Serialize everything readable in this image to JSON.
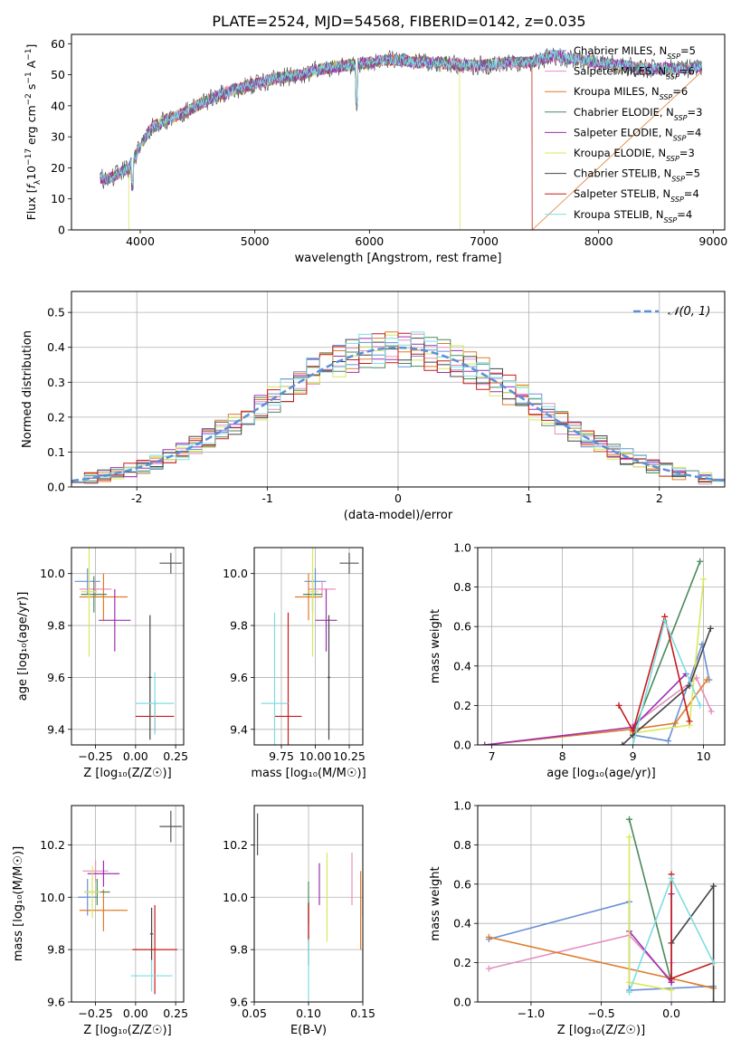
{
  "figure_title": "PLATE=2524, MJD=54568, FIBERID=0142, z=0.035",
  "colors": {
    "Chabrier MILES": "#6b8fd6",
    "Salpeter MILES": "#e58fc0",
    "Kroupa MILES": "#e07b2a",
    "Chabrier ELODIE": "#4a8a5a",
    "Salpeter ELODIE": "#9b30b0",
    "Kroupa ELODIE": "#d8e85a",
    "Chabrier STELIB": "#444444",
    "Salpeter STELIB": "#c81a1a",
    "Kroupa STELIB": "#7fdde0"
  },
  "chart_data": [
    {
      "id": "spectrum",
      "type": "line",
      "xlabel": "wavelength [Angstrom, rest frame]",
      "ylabel_parts": [
        "Flux [",
        "f",
        "λ",
        "10",
        "−17",
        " erg cm",
        "−2",
        " s",
        "−1",
        " A",
        "−1",
        "]"
      ],
      "xlim": [
        3400,
        9100
      ],
      "ylim": [
        0,
        63
      ],
      "xticks": [
        4000,
        5000,
        6000,
        7000,
        8000,
        9000
      ],
      "yticks": [
        0,
        10,
        20,
        30,
        40,
        50,
        60
      ],
      "continuum": {
        "x": [
          3650,
          3700,
          3800,
          3900,
          4000,
          4100,
          4200,
          4400,
          4600,
          4800,
          5000,
          5200,
          5400,
          5600,
          5800,
          6000,
          6200,
          6400,
          6600,
          6800,
          7000,
          7200,
          7400,
          7600,
          7800,
          8000,
          8200,
          8400,
          8600,
          8800,
          8900
        ],
        "y": [
          17,
          16,
          18,
          20,
          27,
          33,
          35,
          38,
          42,
          45,
          47,
          49,
          50,
          52,
          53,
          54,
          55,
          54,
          54,
          53,
          53,
          54,
          54,
          56,
          55,
          54,
          53,
          52,
          52,
          52,
          53
        ]
      },
      "legend": [
        {
          "name": "Chabrier MILES",
          "nssp": "5"
        },
        {
          "name": "Salpeter MILES",
          "nssp": "6"
        },
        {
          "name": "Kroupa MILES",
          "nssp": "6"
        },
        {
          "name": "Chabrier ELODIE",
          "nssp": "3"
        },
        {
          "name": "Salpeter ELODIE",
          "nssp": "4"
        },
        {
          "name": "Kroupa ELODIE",
          "nssp": "3"
        },
        {
          "name": "Chabrier STELIB",
          "nssp": "5"
        },
        {
          "name": "Salpeter STELIB",
          "nssp": "4"
        },
        {
          "name": "Kroupa STELIB",
          "nssp": "4"
        }
      ],
      "series_ends": {
        "Kroupa ELODIE": [
          3900,
          6790
        ],
        "Salpeter STELIB": [
          3650,
          7420
        ],
        "Kroupa STELIB": [
          3650,
          8900
        ],
        "Chabrier STELIB": [
          3650,
          8900
        ]
      }
    },
    {
      "id": "residuals",
      "type": "histogram",
      "xlabel": "(data-model)/error",
      "ylabel": "Normed distribution",
      "xlim": [
        -2.5,
        2.5
      ],
      "ylim": [
        0,
        0.56
      ],
      "xticks": [
        -2,
        -1,
        0,
        1,
        2
      ],
      "yticks": [
        0.0,
        0.1,
        0.2,
        0.3,
        0.4,
        0.5
      ],
      "bin_width": 0.1,
      "legend_label": "𝒩(0, 1)"
    },
    {
      "id": "age_vs_Z",
      "type": "scatter",
      "xlabel": "Z [log₁₀(Z/Z☉)]",
      "ylabel": "age  [log₁₀(age/yr)]",
      "xlim": [
        -0.4,
        0.3
      ],
      "ylim": [
        9.34,
        10.1
      ],
      "xticks": [
        -0.25,
        0.0,
        0.25
      ],
      "xtick_labels": [
        "−0.25",
        "0.00",
        "0.25"
      ],
      "yticks": [
        9.4,
        9.6,
        9.8,
        10.0
      ],
      "points": [
        {
          "model": "Chabrier MILES",
          "x": -0.3,
          "y": 9.97,
          "xerr": 0.08,
          "yerr": 0.05
        },
        {
          "model": "Salpeter MILES",
          "x": -0.25,
          "y": 9.94,
          "xerr": 0.1,
          "yerr": 0.03
        },
        {
          "model": "Kroupa MILES",
          "x": -0.2,
          "y": 9.91,
          "xerr": 0.15,
          "yerr": 0.09
        },
        {
          "model": "Chabrier ELODIE",
          "x": -0.26,
          "y": 9.92,
          "xerr": 0.08,
          "yerr": 0.07
        },
        {
          "model": "Salpeter ELODIE",
          "x": -0.13,
          "y": 9.82,
          "xerr": 0.1,
          "yerr": 0.12
        },
        {
          "model": "Kroupa ELODIE",
          "x": -0.29,
          "y": 9.93,
          "xerr": 0.05,
          "yerr": 0.25
        },
        {
          "model": "Chabrier STELIB",
          "x": 0.09,
          "y": 9.6,
          "xerr": 0.01,
          "yerr": 0.24
        },
        {
          "model": "Salpeter STELIB",
          "x": 0.12,
          "y": 9.45,
          "xerr": 0.12,
          "yerr": 0.06
        },
        {
          "model": "Kroupa STELIB",
          "x": 0.12,
          "y": 9.5,
          "xerr": 0.12,
          "yerr": 0.12
        }
      ],
      "ref_error": {
        "x": 0.22,
        "y": 10.04,
        "xerr": 0.07,
        "yerr": 0.04
      }
    },
    {
      "id": "age_vs_mass",
      "type": "scatter",
      "xlabel": "mass [log₁₀(M/M☉)]",
      "ylabel": "",
      "xlim": [
        9.55,
        10.35
      ],
      "ylim": [
        9.34,
        10.1
      ],
      "xticks": [
        9.75,
        10.0,
        10.25
      ],
      "xtick_labels": [
        "9.75",
        "10.00",
        "10.25"
      ],
      "yticks": [
        9.4,
        9.6,
        9.8,
        10.0
      ],
      "points": [
        {
          "model": "Chabrier MILES",
          "x": 10.0,
          "y": 9.97,
          "xerr": 0.08,
          "yerr": 0.05
        },
        {
          "model": "Salpeter MILES",
          "x": 10.05,
          "y": 9.94,
          "xerr": 0.1,
          "yerr": 0.03
        },
        {
          "model": "Kroupa MILES",
          "x": 9.95,
          "y": 9.91,
          "xerr": 0.1,
          "yerr": 0.09
        },
        {
          "model": "Chabrier ELODIE",
          "x": 9.98,
          "y": 9.92,
          "xerr": 0.07,
          "yerr": 0.07
        },
        {
          "model": "Salpeter ELODIE",
          "x": 10.08,
          "y": 9.82,
          "xerr": 0.08,
          "yerr": 0.12
        },
        {
          "model": "Kroupa ELODIE",
          "x": 9.98,
          "y": 9.93,
          "xerr": 0.04,
          "yerr": 0.25
        },
        {
          "model": "Chabrier STELIB",
          "x": 10.1,
          "y": 9.6,
          "xerr": 0.01,
          "yerr": 0.24
        },
        {
          "model": "Salpeter STELIB",
          "x": 9.8,
          "y": 9.45,
          "xerr": 0.1,
          "yerr": 0.4
        },
        {
          "model": "Kroupa STELIB",
          "x": 9.7,
          "y": 9.5,
          "xerr": 0.1,
          "yerr": 0.35
        }
      ],
      "ref_error": {
        "x": 10.25,
        "y": 10.04,
        "xerr": 0.07,
        "yerr": 0.04
      }
    },
    {
      "id": "weight_vs_age",
      "type": "line",
      "xlabel": "age  [log₁₀(age/yr)]",
      "ylabel": "mass weight",
      "xlim": [
        6.8,
        10.3
      ],
      "ylim": [
        0,
        1.0
      ],
      "xticks": [
        7,
        8,
        9,
        10
      ],
      "yticks": [
        0.0,
        0.2,
        0.4,
        0.6,
        0.8,
        1.0
      ],
      "series": [
        {
          "model": "Chabrier MILES",
          "x": [
            9.0,
            9.5,
            9.98,
            10.08
          ],
          "y": [
            0.05,
            0.02,
            0.51,
            0.33
          ]
        },
        {
          "model": "Salpeter MILES",
          "x": [
            9.0,
            9.9,
            10.11
          ],
          "y": [
            0.1,
            0.34,
            0.17
          ]
        },
        {
          "model": "Kroupa MILES",
          "x": [
            6.9,
            9.0,
            9.6,
            10.05
          ],
          "y": [
            0.0,
            0.08,
            0.11,
            0.33
          ]
        },
        {
          "model": "Chabrier ELODIE",
          "x": [
            9.0,
            9.95
          ],
          "y": [
            0.06,
            0.93
          ]
        },
        {
          "model": "Salpeter ELODIE",
          "x": [
            6.9,
            9.0,
            9.75
          ],
          "y": [
            0.0,
            0.09,
            0.36
          ]
        },
        {
          "model": "Kroupa ELODIE",
          "x": [
            9.0,
            9.8,
            10.0
          ],
          "y": [
            0.06,
            0.1,
            0.84
          ]
        },
        {
          "model": "Chabrier STELIB",
          "x": [
            8.85,
            9.0,
            9.8,
            10.1
          ],
          "y": [
            0.0,
            0.05,
            0.3,
            0.59
          ]
        },
        {
          "model": "Salpeter STELIB",
          "x": [
            8.8,
            9.0,
            9.45,
            9.8
          ],
          "y": [
            0.2,
            0.07,
            0.65,
            0.12
          ]
        },
        {
          "model": "Kroupa STELIB",
          "x": [
            9.0,
            9.45,
            9.95
          ],
          "y": [
            0.0,
            0.63,
            0.2
          ]
        }
      ]
    },
    {
      "id": "mass_vs_Z",
      "type": "scatter",
      "xlabel": "Z [log₁₀(Z/Z☉)]",
      "ylabel": "mass [log₁₀(M/M☉)]",
      "xlim": [
        -0.4,
        0.3
      ],
      "ylim": [
        9.6,
        10.35
      ],
      "xticks": [
        -0.25,
        0.0,
        0.25
      ],
      "xtick_labels": [
        "−0.25",
        "0.00",
        "0.25"
      ],
      "yticks": [
        9.6,
        9.8,
        10.0,
        10.2
      ],
      "points": [
        {
          "model": "Chabrier MILES",
          "x": -0.3,
          "y": 10.0,
          "xerr": 0.06,
          "yerr": 0.07
        },
        {
          "model": "Salpeter MILES",
          "x": -0.25,
          "y": 10.1,
          "xerr": 0.08,
          "yerr": 0.04
        },
        {
          "model": "Kroupa MILES",
          "x": -0.2,
          "y": 9.95,
          "xerr": 0.15,
          "yerr": 0.08
        },
        {
          "model": "Chabrier ELODIE",
          "x": -0.24,
          "y": 10.02,
          "xerr": 0.08,
          "yerr": 0.05
        },
        {
          "model": "Salpeter ELODIE",
          "x": -0.2,
          "y": 10.09,
          "xerr": 0.1,
          "yerr": 0.05
        },
        {
          "model": "Kroupa ELODIE",
          "x": -0.27,
          "y": 10.02,
          "xerr": 0.05,
          "yerr": 0.1
        },
        {
          "model": "Chabrier STELIB",
          "x": 0.1,
          "y": 9.86,
          "xerr": 0.01,
          "yerr": 0.1
        },
        {
          "model": "Salpeter STELIB",
          "x": 0.12,
          "y": 9.8,
          "xerr": 0.14,
          "yerr": 0.17
        },
        {
          "model": "Kroupa STELIB",
          "x": 0.1,
          "y": 9.7,
          "xerr": 0.13,
          "yerr": 0.06
        }
      ],
      "ref_error": {
        "x": 0.22,
        "y": 10.27,
        "xerr": 0.07,
        "yerr": 0.06
      }
    },
    {
      "id": "mass_vs_EBV",
      "type": "scatter",
      "xlabel": "E(B-V)",
      "ylabel": "",
      "xlim": [
        0.05,
        0.15
      ],
      "ylim": [
        9.6,
        10.35
      ],
      "xticks": [
        0.05,
        0.1,
        0.15
      ],
      "xtick_labels": [
        "0.05",
        "0.10",
        "0.15"
      ],
      "yticks": [
        9.6,
        9.8,
        10.0,
        10.2
      ],
      "points": [
        {
          "model": "Chabrier MILES",
          "x": 0.15,
          "y": 10.0,
          "xerr": 0.0,
          "yerr": 0.07
        },
        {
          "model": "Salpeter MILES",
          "x": 0.14,
          "y": 10.07,
          "xerr": 0.0,
          "yerr": 0.1
        },
        {
          "model": "Kroupa MILES",
          "x": 0.148,
          "y": 9.95,
          "xerr": 0.0,
          "yerr": 0.15
        },
        {
          "model": "Chabrier ELODIE",
          "x": 0.1,
          "y": 9.98,
          "xerr": 0.0,
          "yerr": 0.08
        },
        {
          "model": "Salpeter ELODIE",
          "x": 0.11,
          "y": 10.05,
          "xerr": 0.0,
          "yerr": 0.08
        },
        {
          "model": "Kroupa ELODIE",
          "x": 0.117,
          "y": 10.0,
          "xerr": 0.0,
          "yerr": 0.17
        },
        {
          "model": "Chabrier STELIB",
          "x": 0.1,
          "y": 9.86,
          "xerr": 0.0,
          "yerr": 0.12
        },
        {
          "model": "Salpeter STELIB",
          "x": 0.1,
          "y": 9.9,
          "xerr": 0.0,
          "yerr": 0.07
        },
        {
          "model": "Kroupa STELIB",
          "x": 0.1,
          "y": 9.72,
          "xerr": 0.0,
          "yerr": 0.12
        }
      ],
      "ref_error": {
        "x": 0.053,
        "y": 10.24,
        "xerr": 0.0,
        "yerr": 0.08
      }
    },
    {
      "id": "weight_vs_Z",
      "type": "line",
      "xlabel": "Z [log₁₀(Z/Z☉)]",
      "ylabel": "mass weight",
      "xlim": [
        -1.38,
        0.38
      ],
      "ylim": [
        0,
        1.0
      ],
      "xticks": [
        -1.0,
        -0.5,
        0.0
      ],
      "xtick_labels": [
        "−1.0",
        "−0.5",
        "0.0"
      ],
      "yticks": [
        0.0,
        0.2,
        0.4,
        0.6,
        0.8,
        1.0
      ],
      "series": [
        {
          "model": "Chabrier MILES",
          "x": [
            -1.3,
            -0.3,
            -0.3,
            0.3
          ],
          "y": [
            0.32,
            0.51,
            0.06,
            0.08
          ]
        },
        {
          "model": "Salpeter MILES",
          "x": [
            -1.3,
            -0.3,
            0.0,
            0.0
          ],
          "y": [
            0.17,
            0.34,
            0.11,
            0.2
          ]
        },
        {
          "model": "Kroupa MILES",
          "x": [
            -1.3,
            0.0,
            0.3
          ],
          "y": [
            0.33,
            0.12,
            0.07
          ]
        },
        {
          "model": "Chabrier ELODIE",
          "x": [
            -0.3,
            0.0
          ],
          "y": [
            0.93,
            0.1
          ]
        },
        {
          "model": "Salpeter ELODIE",
          "x": [
            -0.3,
            0.0,
            0.0
          ],
          "y": [
            0.36,
            0.1,
            0.55
          ]
        },
        {
          "model": "Kroupa ELODIE",
          "x": [
            -0.3,
            -0.3,
            0.0
          ],
          "y": [
            0.84,
            0.1,
            0.06
          ]
        },
        {
          "model": "Chabrier STELIB",
          "x": [
            0.0,
            0.3,
            0.3
          ],
          "y": [
            0.3,
            0.59,
            0.0
          ]
        },
        {
          "model": "Salpeter STELIB",
          "x": [
            0.0,
            0.0,
            0.3
          ],
          "y": [
            0.65,
            0.12,
            0.2
          ]
        },
        {
          "model": "Kroupa STELIB",
          "x": [
            -0.3,
            0.0,
            0.3
          ],
          "y": [
            0.05,
            0.63,
            0.2
          ]
        }
      ]
    }
  ]
}
